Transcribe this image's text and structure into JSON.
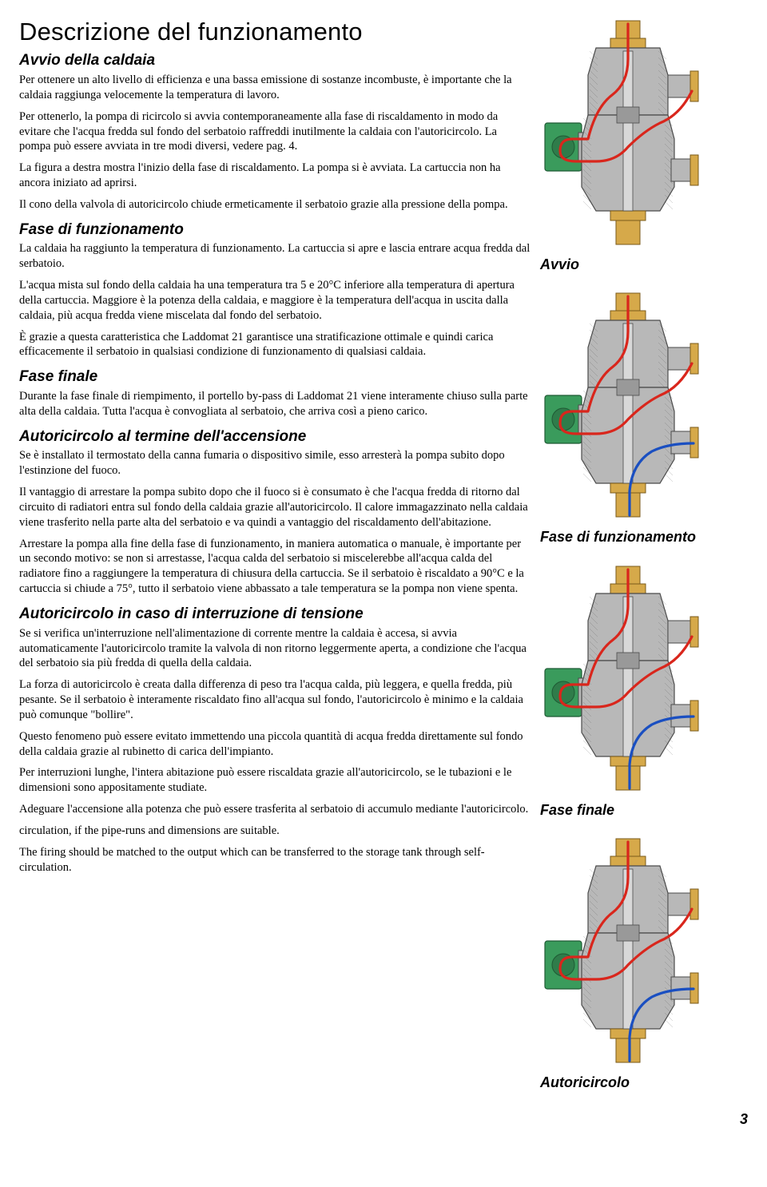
{
  "title": "Descrizione del funzionamento",
  "sections": {
    "s1": {
      "heading": "Avvio della caldaia",
      "p1": "Per ottenere un alto livello di efficienza e una bassa emissione di sostanze incombuste, è importante che la caldaia raggiunga velocemente la temperatura di lavoro.",
      "p2": "Per ottenerlo, la pompa di ricircolo si avvia contemporaneamente alla fase di riscaldamento in modo da evitare che l'acqua fredda sul fondo del serbatoio raffreddi inutilmente la caldaia con l'autoricircolo. La pompa può essere avviata in tre modi diversi, vedere pag. 4.",
      "p3": "La figura a destra mostra l'inizio della fase di riscaldamento. La pompa si è avviata. La cartuccia non ha ancora iniziato ad aprirsi.",
      "p4": "Il cono della valvola di autoricircolo chiude ermeticamente il serbatoio grazie alla pressione della pompa."
    },
    "s2": {
      "heading": "Fase di funzionamento",
      "p1": "La caldaia ha raggiunto la temperatura di funzionamento. La cartuccia si apre e lascia entrare acqua fredda dal serbatoio.",
      "p2": "L'acqua mista sul fondo della caldaia ha una temperatura tra 5 e 20°C inferiore alla temperatura di apertura della cartuccia. Maggiore è la potenza della caldaia, e maggiore è la temperatura dell'acqua in uscita dalla caldaia, più acqua fredda viene miscelata dal fondo del serbatoio.",
      "p3": "È grazie a questa caratteristica che Laddomat 21 garantisce una stratificazione ottimale e quindi carica efficacemente il serbatoio in qualsiasi condizione di funzionamento di qualsiasi caldaia."
    },
    "s3": {
      "heading": "Fase finale",
      "p1": "Durante la fase finale di riempimento, il portello by-pass di Laddomat 21 viene interamente chiuso sulla parte alta della caldaia. Tutta l'acqua è convogliata al serbatoio, che arriva così a pieno carico."
    },
    "s4": {
      "heading": "Autoricircolo al termine dell'accensione",
      "p1": "Se è installato il termostato della canna fumaria o dispositivo simile, esso arresterà la pompa subito dopo l'estinzione del fuoco.",
      "p2": "Il vantaggio di arrestare la pompa subito dopo che il fuoco si è consumato è che l'acqua fredda di ritorno dal circuito di radiatori entra sul fondo della caldaia grazie all'autoricircolo. Il calore immagazzinato nella caldaia viene trasferito nella parte alta del serbatoio e va quindi a vantaggio del riscaldamento dell'abitazione.",
      "p3": "Arrestare la pompa alla fine della fase di funzionamento, in maniera automatica o manuale, è importante per un secondo motivo: se non si arrestasse, l'acqua calda del serbatoio si miscelerebbe all'acqua calda del radiatore fino a raggiungere la temperatura di chiusura della cartuccia. Se il serbatoio è riscaldato a 90°C e la cartuccia si chiude a 75°, tutto il serbatoio viene abbassato a tale temperatura se la pompa non viene spenta."
    },
    "s5": {
      "heading": "Autoricircolo in caso di interruzione di tensione",
      "p1": "Se si verifica un'interruzione nell'alimentazione di corrente mentre la caldaia è accesa, si avvia automaticamente l'autoricircolo tramite la valvola di non ritorno leggermente aperta, a condizione che l'acqua del serbatoio sia più fredda di quella della caldaia.",
      "p2": "La forza di autoricircolo è creata dalla differenza di peso tra l'acqua calda, più leggera, e quella fredda, più pesante. Se il serbatoio è interamente riscaldato fino all'acqua sul fondo, l'autoricircolo è minimo e la caldaia può comunque \"bollire\".",
      "p3": "Questo fenomeno può essere evitato immettendo una piccola quantità di acqua fredda direttamente sul fondo della caldaia grazie al rubinetto di carica dell'impianto.",
      "p4": "Per interruzioni lunghe, l'intera abitazione può essere riscaldata grazie all'autoricircolo, se le tubazioni e le dimensioni sono appositamente studiate.",
      "p5": "Adeguare l'accensione alla potenza che può essere trasferita al serbatoio di accumulo mediante l'autoricircolo.",
      "p6": "circulation, if the pipe-runs and dimensions are suitable.",
      "p7": "The firing should be matched to the output which can be transferred to the storage tank through self-circulation."
    }
  },
  "figures": {
    "f1": {
      "label": "Avvio",
      "flow_hot": "#d9261c",
      "flow_cold": "#1a4fc1",
      "has_cold": false
    },
    "f2": {
      "label": "Fase di funzionamento",
      "flow_hot": "#d9261c",
      "flow_cold": "#1a4fc1",
      "has_cold": true
    },
    "f3": {
      "label": "Fase finale",
      "flow_hot": "#d9261c",
      "flow_cold": "#1a4fc1",
      "has_cold": true
    },
    "f4": {
      "label": "Autoricircolo",
      "flow_hot": "#d9261c",
      "flow_cold": "#1a4fc1",
      "has_cold": true
    }
  },
  "diagram_style": {
    "body_fill": "#b8b8b8",
    "body_stroke": "#4a4a4a",
    "brass_fill": "#d6a94a",
    "brass_stroke": "#7a5a1a",
    "pump_fill": "#3a9b5c",
    "pump_stroke": "#1f5a34",
    "flow_stroke_width": 3.2
  },
  "page_number": "3"
}
